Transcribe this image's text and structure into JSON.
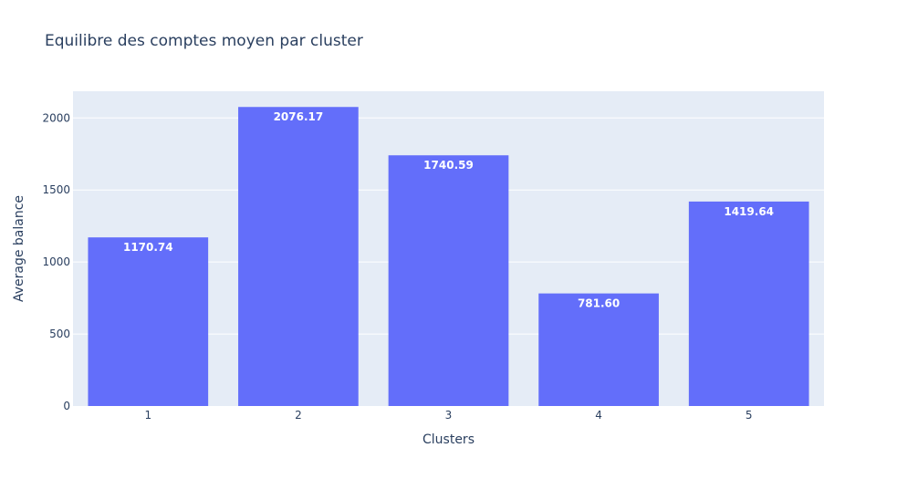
{
  "chart_data": {
    "type": "bar",
    "title": "Equilibre des comptes moyen par cluster",
    "xlabel": "Clusters",
    "ylabel": "Average balance",
    "categories": [
      "1",
      "2",
      "3",
      "4",
      "5"
    ],
    "values": [
      1170.74,
      2076.17,
      1740.59,
      781.6,
      1419.64
    ],
    "value_labels": [
      "1170.74",
      "2076.17",
      "1740.59",
      "781.60",
      "1419.64"
    ],
    "ylim": [
      0,
      2185.44
    ],
    "yticks": [
      0,
      500,
      1000,
      1500,
      2000
    ],
    "ytick_labels": [
      "0",
      "500",
      "1000",
      "1500",
      "2000"
    ],
    "grid": true,
    "legend": "none",
    "colors": {
      "bar": "#636efa",
      "plot_bg": "#e5ecf6",
      "paper_bg": "#ffffff",
      "grid": "#ffffff",
      "text": "#2a3f5f"
    }
  }
}
